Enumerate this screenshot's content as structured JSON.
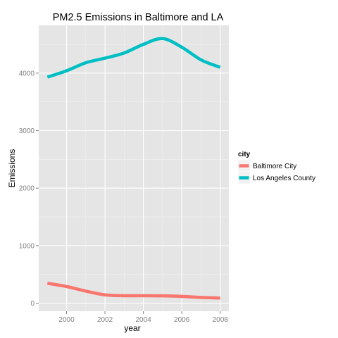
{
  "chart_data": {
    "type": "line",
    "title": "PM2.5 Emissions in Baltimore and LA",
    "xlabel": "year",
    "ylabel": "Emissions",
    "x": [
      1999,
      2000,
      2001,
      2002,
      2003,
      2004,
      2005,
      2006,
      2007,
      2008
    ],
    "xlim": [
      1998.55,
      2008.45
    ],
    "ylim": [
      -140,
      4830
    ],
    "x_ticks": [
      2000,
      2002,
      2004,
      2006,
      2008
    ],
    "y_ticks": [
      0,
      1000,
      2000,
      3000,
      4000
    ],
    "x_tick_labels": [
      "2000",
      "2002",
      "2004",
      "2006",
      "2008"
    ],
    "y_tick_labels": [
      "0",
      "1000",
      "2000",
      "3000",
      "4000"
    ],
    "grid": true,
    "legend": {
      "title": "city",
      "position": "right"
    },
    "series": [
      {
        "name": "Baltimore City",
        "color": "#f8766d",
        "values": [
          346,
          290,
          210,
          145,
          130,
          130,
          128,
          118,
          100,
          90
        ]
      },
      {
        "name": "Los Angeles County",
        "color": "#00bfc4",
        "values": [
          3930,
          4040,
          4180,
          4260,
          4350,
          4500,
          4600,
          4450,
          4230,
          4100
        ]
      }
    ]
  }
}
